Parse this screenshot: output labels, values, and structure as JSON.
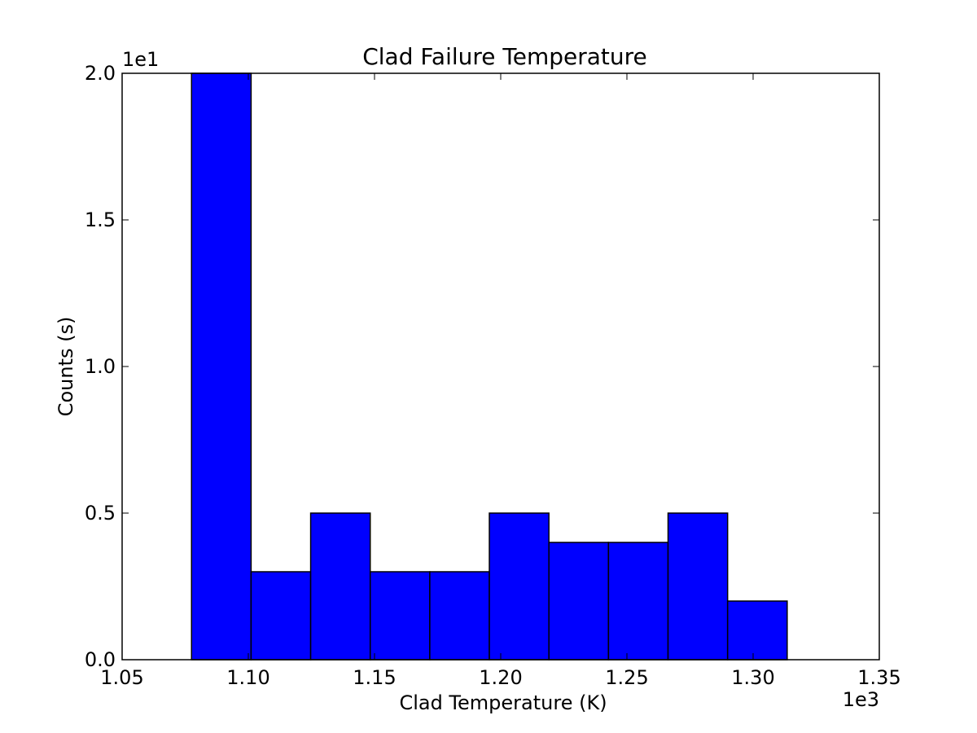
{
  "chart_data": {
    "type": "bar",
    "title": "Clad Failure Temperature",
    "xlabel": "Clad Temperature (K)",
    "ylabel": "Counts (s)",
    "x_offset_label": "1e3",
    "y_offset_label": "1e1",
    "xlim": [
      1.05,
      1.35
    ],
    "ylim": [
      0.0,
      2.0
    ],
    "x_ticks": [
      "1.05",
      "1.10",
      "1.15",
      "1.20",
      "1.25",
      "1.30",
      "1.35"
    ],
    "y_ticks": [
      "0.0",
      "0.5",
      "1.0",
      "1.5",
      "2.0"
    ],
    "bin_edges": [
      1.0775,
      1.1011,
      1.1247,
      1.1483,
      1.1719,
      1.1955,
      1.2191,
      1.2427,
      1.2663,
      1.2899,
      1.3135
    ],
    "values": [
      2.0,
      0.3,
      0.5,
      0.3,
      0.3,
      0.5,
      0.4,
      0.4,
      0.5,
      0.2
    ],
    "bar_color": "#0000ff",
    "edge_color": "#000000",
    "grid": false,
    "legend": "none"
  }
}
